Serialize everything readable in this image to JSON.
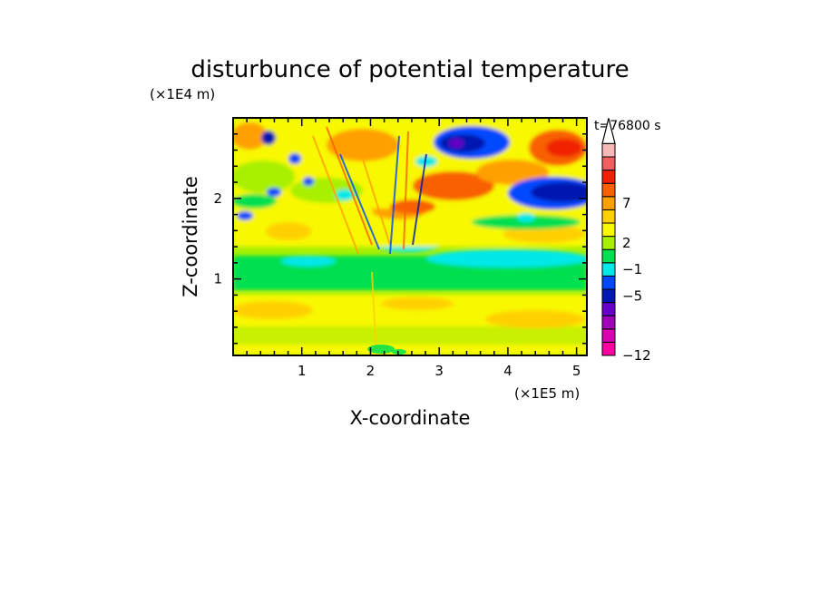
{
  "chart_data": {
    "type": "heatmap",
    "title": "disturbunce of potential temperature",
    "xlabel": "X-coordinate",
    "ylabel": "Z-coordinate",
    "x_scale_label": "(×1E5 m)",
    "y_scale_label": "(×1E4 m)",
    "time_label": "t=76800 s",
    "xlim": [
      0,
      5.15
    ],
    "ylim": [
      0.05,
      3.0
    ],
    "x_ticks": [
      "1",
      "2",
      "3",
      "4",
      "5"
    ],
    "y_ticks": [
      "1",
      "2"
    ],
    "colorbar": {
      "tick_labels": [
        "7",
        "2",
        "−1",
        "−5",
        "−12"
      ],
      "levels": [
        {
          "color": "#ff00a0",
          "range": "< -12"
        },
        {
          "color": "#d800b0"
        },
        {
          "color": "#a000b8"
        },
        {
          "color": "#6800c8"
        },
        {
          "color": "#0018b0"
        },
        {
          "color": "#0048ff"
        },
        {
          "color": "#00e8e8"
        },
        {
          "color": "#00e050"
        },
        {
          "color": "#a8f000"
        },
        {
          "color": "#f8f800"
        },
        {
          "color": "#ffd000"
        },
        {
          "color": "#ffa000"
        },
        {
          "color": "#f86000"
        },
        {
          "color": "#f02000"
        },
        {
          "color": "#f06060"
        },
        {
          "color": "#f8b8b8"
        },
        {
          "color": "#ffffff",
          "range": "> max"
        }
      ]
    },
    "regions": [
      {
        "label": "near-zero background",
        "color": "#00e050",
        "zrange": [
          1.0,
          1.3
        ]
      },
      {
        "label": "warm lower band",
        "color": "#ffd000",
        "zrange": [
          0.4,
          0.8
        ]
      },
      {
        "label": "cold anomaly upper right",
        "color": "#0018b0",
        "x": 4.8,
        "z": 2.1
      },
      {
        "label": "warm anomaly upper right",
        "color": "#f02000",
        "x": 4.7,
        "z": 2.6
      },
      {
        "label": "cold anomaly top center",
        "color": "#6800c8",
        "x": 3.2,
        "z": 2.65
      }
    ]
  }
}
